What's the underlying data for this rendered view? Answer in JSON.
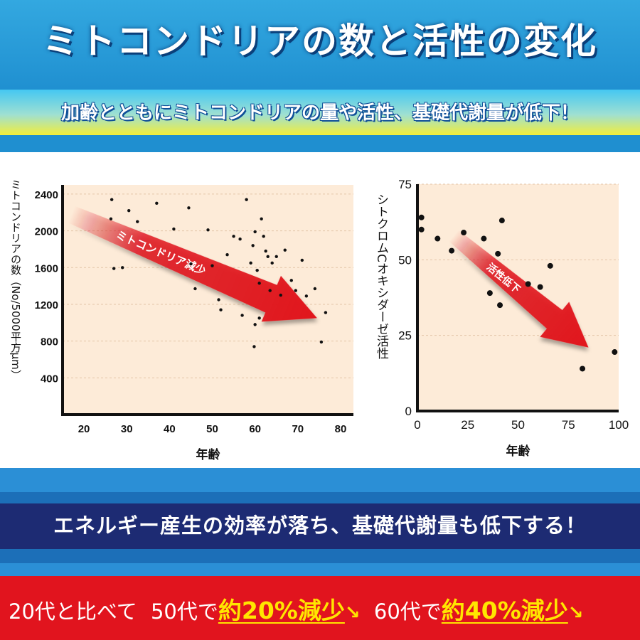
{
  "header": {
    "title": "ミトコンドリアの数と活性の変化",
    "subtitle": "加齢とともにミトコンドリアの量や活性、基礎代謝量が低下！"
  },
  "chart_data": [
    {
      "type": "scatter",
      "ylabel": "ミトコンドリアの数（No/5000平方μm）",
      "xlabel": "年齢",
      "xlim": [
        15,
        83
      ],
      "ylim": [
        0,
        2500
      ],
      "xticks": [
        20,
        30,
        40,
        50,
        60,
        70,
        80
      ],
      "yticks": [
        400,
        800,
        1200,
        1600,
        2000,
        2400
      ],
      "grid": "horizontal dashed",
      "annotation": "ミトコンドリア減少",
      "points": [
        [
          26.5,
          2340
        ],
        [
          26.3,
          2130
        ],
        [
          27,
          1590
        ],
        [
          29,
          1600
        ],
        [
          30.5,
          2220
        ],
        [
          32.5,
          2100
        ],
        [
          37,
          2300
        ],
        [
          41,
          2020
        ],
        [
          44.5,
          2250
        ],
        [
          45,
          1640
        ],
        [
          46,
          1370
        ],
        [
          49,
          2010
        ],
        [
          50,
          1620
        ],
        [
          51.5,
          1250
        ],
        [
          52,
          1140
        ],
        [
          53.5,
          1740
        ],
        [
          55,
          1940
        ],
        [
          56.5,
          1910
        ],
        [
          57,
          1080
        ],
        [
          58,
          2340
        ],
        [
          59,
          1650
        ],
        [
          59.5,
          1840
        ],
        [
          60,
          1990
        ],
        [
          60.5,
          1570
        ],
        [
          61,
          1430
        ],
        [
          61.5,
          2130
        ],
        [
          62,
          1940
        ],
        [
          62.5,
          1780
        ],
        [
          63,
          1720
        ],
        [
          63.5,
          1350
        ],
        [
          64,
          1650
        ],
        [
          65,
          1720
        ],
        [
          66,
          1300
        ],
        [
          67,
          1790
        ],
        [
          68.5,
          1460
        ],
        [
          69.5,
          1350
        ],
        [
          71,
          1680
        ],
        [
          72,
          1290
        ],
        [
          61,
          1050
        ],
        [
          60,
          980
        ],
        [
          59.8,
          740
        ],
        [
          74,
          1370
        ],
        [
          75.5,
          790
        ],
        [
          76.5,
          1110
        ]
      ]
    },
    {
      "type": "scatter",
      "ylabel": "シトクロムCオキシダーゼ活性",
      "xlabel": "年齢",
      "xlim": [
        0,
        100
      ],
      "ylim": [
        0,
        75
      ],
      "xticks": [
        0,
        25,
        50,
        75,
        100
      ],
      "yticks": [
        0,
        25,
        50,
        75
      ],
      "grid": "horizontal dashed",
      "annotation": "活性低下",
      "points": [
        [
          2,
          64
        ],
        [
          2,
          60
        ],
        [
          10,
          57
        ],
        [
          17,
          53
        ],
        [
          23,
          59
        ],
        [
          33,
          57
        ],
        [
          36,
          39
        ],
        [
          40,
          52
        ],
        [
          41,
          35
        ],
        [
          42,
          63
        ],
        [
          55,
          42
        ],
        [
          61,
          41
        ],
        [
          66,
          48
        ],
        [
          82,
          14
        ],
        [
          98,
          19.5
        ]
      ]
    }
  ],
  "midline": "エネルギー産生の効率が落ち、基礎代謝量も低下する！",
  "bottom": {
    "lead": "20代と比べて",
    "p1_pre": "50代で",
    "p1_em": "約20%減少",
    "p2_pre": "60代で",
    "p2_em": "約40%減少",
    "arrow": "↘"
  },
  "colors": {
    "header_blue": "#1f8fd0",
    "plot_bg": "#fdebd8",
    "arrow_red": "#e1141e",
    "bottom_red": "#e1141e",
    "emphasis_yellow": "#ffe600",
    "navy_band": "#1d2b73"
  }
}
